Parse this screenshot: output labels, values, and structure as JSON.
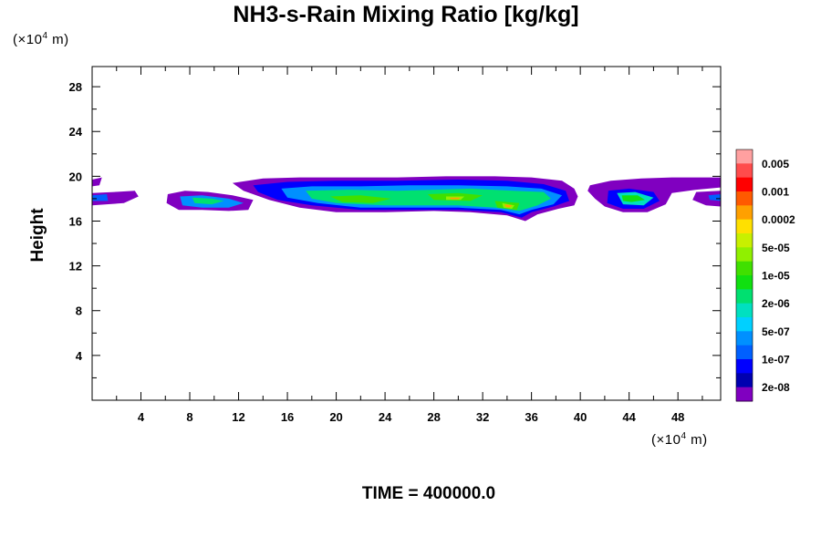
{
  "chart_data": {
    "type": "contour",
    "title": "NH3-s-Rain Mixing Ratio [kg/kg]",
    "ylabel": "Height",
    "xunit": {
      "prefix": "(×10",
      "exp": "4",
      "suffix": " m)"
    },
    "yunit": {
      "prefix": "(×10",
      "exp": "4",
      "suffix": " m)"
    },
    "footer": "TIME = 400000.0",
    "xlim": [
      0,
      51.5
    ],
    "ylim": [
      0,
      29.8
    ],
    "xticks": [
      4,
      8,
      12,
      16,
      20,
      24,
      28,
      32,
      36,
      40,
      44,
      48
    ],
    "yticks": [
      4,
      8,
      12,
      16,
      20,
      24,
      28
    ],
    "colorbar": {
      "colors": [
        "#ffa0a0",
        "#ff4c4c",
        "#ff0000",
        "#ff5a00",
        "#ffa000",
        "#ffe000",
        "#c8f000",
        "#90f000",
        "#40e000",
        "#10e010",
        "#00e070",
        "#00e0c0",
        "#00d0ff",
        "#0090ff",
        "#0060ff",
        "#0000ff",
        "#0000b0",
        "#8000c0"
      ],
      "labels": [
        "0.005",
        "0.001",
        "0.0002",
        "5e-05",
        "1e-05",
        "2e-06",
        "5e-07",
        "1e-07",
        "2e-08"
      ]
    },
    "regions": [
      {
        "level": 0,
        "points": [
          [
            0,
            19.7
          ],
          [
            0.8,
            19.9
          ],
          [
            0.6,
            19.2
          ],
          [
            0,
            19.1
          ]
        ]
      },
      {
        "level": 0,
        "points": [
          [
            0,
            18.5
          ],
          [
            1.8,
            18.6
          ],
          [
            3.5,
            18.7
          ],
          [
            3.8,
            18.2
          ],
          [
            2.6,
            17.6
          ],
          [
            0,
            17.4
          ]
        ]
      },
      {
        "level": 3,
        "points": [
          [
            0,
            18.3
          ],
          [
            1.2,
            18.4
          ],
          [
            1.3,
            17.8
          ],
          [
            0,
            17.8
          ]
        ]
      },
      {
        "level": 0,
        "points": [
          [
            6.2,
            18.4
          ],
          [
            7.6,
            18.7
          ],
          [
            9.5,
            18.6
          ],
          [
            11.5,
            18.3
          ],
          [
            13.2,
            17.9
          ],
          [
            12.8,
            17.0
          ],
          [
            11.2,
            16.9
          ],
          [
            9,
            17.0
          ],
          [
            7.1,
            17.0
          ],
          [
            6.1,
            17.6
          ]
        ]
      },
      {
        "level": 4,
        "points": [
          [
            7.2,
            18.2
          ],
          [
            9,
            18.3
          ],
          [
            11.2,
            18.0
          ],
          [
            12.4,
            17.6
          ],
          [
            11.2,
            17.2
          ],
          [
            9,
            17.2
          ],
          [
            7.4,
            17.4
          ]
        ]
      },
      {
        "level": 7,
        "points": [
          [
            8.2,
            18.1
          ],
          [
            9.8,
            18.0
          ],
          [
            10.8,
            17.8
          ],
          [
            9.8,
            17.5
          ],
          [
            8.4,
            17.6
          ]
        ]
      },
      {
        "level": 0,
        "points": [
          [
            11.5,
            19.4
          ],
          [
            14,
            19.8
          ],
          [
            17,
            19.9
          ],
          [
            21,
            19.9
          ],
          [
            25,
            19.9
          ],
          [
            29,
            20.0
          ],
          [
            33,
            20.0
          ],
          [
            36,
            19.9
          ],
          [
            38.5,
            19.6
          ],
          [
            39.5,
            18.9
          ],
          [
            39.8,
            18.2
          ],
          [
            39.5,
            17.4
          ],
          [
            38.2,
            17.1
          ],
          [
            36.5,
            16.6
          ],
          [
            35.5,
            16.0
          ],
          [
            34,
            16.5
          ],
          [
            31,
            16.8
          ],
          [
            28,
            16.9
          ],
          [
            24,
            16.8
          ],
          [
            20,
            16.8
          ],
          [
            17,
            17.2
          ],
          [
            14.5,
            17.9
          ],
          [
            12.4,
            18.7
          ]
        ]
      },
      {
        "level": 2,
        "points": [
          [
            13.2,
            19.2
          ],
          [
            16,
            19.5
          ],
          [
            20,
            19.6
          ],
          [
            25,
            19.6
          ],
          [
            30,
            19.7
          ],
          [
            34,
            19.6
          ],
          [
            37,
            19.3
          ],
          [
            38.8,
            18.7
          ],
          [
            39.1,
            17.8
          ],
          [
            37.8,
            17.3
          ],
          [
            36,
            16.8
          ],
          [
            35.2,
            16.3
          ],
          [
            33.5,
            16.8
          ],
          [
            30,
            17.0
          ],
          [
            26,
            17.0
          ],
          [
            22,
            17.0
          ],
          [
            18,
            17.4
          ],
          [
            15.2,
            17.9
          ],
          [
            13.6,
            18.6
          ]
        ]
      },
      {
        "level": 4,
        "points": [
          [
            15.5,
            18.9
          ],
          [
            18,
            19.1
          ],
          [
            22,
            19.1
          ],
          [
            26,
            19.2
          ],
          [
            30,
            19.2
          ],
          [
            34,
            19.1
          ],
          [
            36.8,
            18.9
          ],
          [
            38.5,
            18.3
          ],
          [
            37.8,
            17.5
          ],
          [
            36,
            17.0
          ],
          [
            35,
            16.6
          ],
          [
            33.5,
            17.0
          ],
          [
            30,
            17.2
          ],
          [
            26,
            17.2
          ],
          [
            22,
            17.2
          ],
          [
            18.5,
            17.6
          ],
          [
            16,
            18.1
          ]
        ]
      },
      {
        "level": 7,
        "points": [
          [
            17.5,
            18.7
          ],
          [
            21,
            18.8
          ],
          [
            25,
            18.7
          ],
          [
            28,
            18.8
          ],
          [
            31,
            18.9
          ],
          [
            34.5,
            18.7
          ],
          [
            37,
            18.6
          ],
          [
            37.6,
            18.0
          ],
          [
            36.5,
            17.4
          ],
          [
            35,
            16.9
          ],
          [
            33,
            17.2
          ],
          [
            30,
            17.4
          ],
          [
            27,
            17.4
          ],
          [
            24,
            17.4
          ],
          [
            20,
            17.6
          ],
          [
            18,
            18.0
          ]
        ]
      },
      {
        "level": 9,
        "points": [
          [
            19.5,
            18.2
          ],
          [
            22,
            18.3
          ],
          [
            24.5,
            18.0
          ],
          [
            23,
            17.6
          ],
          [
            20.5,
            17.7
          ]
        ]
      },
      {
        "level": 9,
        "points": [
          [
            27.5,
            18.4
          ],
          [
            30,
            18.5
          ],
          [
            32,
            18.3
          ],
          [
            31,
            17.8
          ],
          [
            28,
            17.9
          ]
        ]
      },
      {
        "level": 9,
        "points": [
          [
            33,
            17.8
          ],
          [
            35,
            17.6
          ],
          [
            34.8,
            17.0
          ],
          [
            33.2,
            17.2
          ]
        ]
      },
      {
        "level": 10,
        "points": [
          [
            29,
            18.2
          ],
          [
            30.5,
            18.2
          ],
          [
            30.2,
            17.9
          ],
          [
            29,
            17.9
          ]
        ]
      },
      {
        "level": 13,
        "points": [
          [
            29.3,
            18.1
          ],
          [
            30.2,
            18.1
          ],
          [
            30,
            17.95
          ],
          [
            29.4,
            17.95
          ]
        ]
      },
      {
        "level": 10,
        "points": [
          [
            33.6,
            17.6
          ],
          [
            34.6,
            17.4
          ],
          [
            34.4,
            17.1
          ],
          [
            33.7,
            17.2
          ]
        ]
      },
      {
        "level": 13,
        "points": [
          [
            33.8,
            17.5
          ],
          [
            34.4,
            17.4
          ],
          [
            34.2,
            17.2
          ],
          [
            33.9,
            17.25
          ]
        ]
      },
      {
        "level": 0,
        "points": [
          [
            40.8,
            19.2
          ],
          [
            42.5,
            19.6
          ],
          [
            45,
            19.8
          ],
          [
            47.5,
            19.9
          ],
          [
            50,
            19.9
          ],
          [
            51.5,
            19.9
          ],
          [
            51.5,
            19.0
          ],
          [
            49.5,
            18.8
          ],
          [
            47.5,
            18.5
          ],
          [
            47,
            17.5
          ],
          [
            45.5,
            16.8
          ],
          [
            43.5,
            16.8
          ],
          [
            42,
            17.3
          ],
          [
            41.2,
            18.0
          ],
          [
            40.6,
            18.7
          ]
        ]
      },
      {
        "level": 2,
        "points": [
          [
            42.3,
            18.7
          ],
          [
            44,
            18.9
          ],
          [
            46,
            18.6
          ],
          [
            46.5,
            17.8
          ],
          [
            45.2,
            17.1
          ],
          [
            43.5,
            17.1
          ],
          [
            42.2,
            17.6
          ]
        ]
      },
      {
        "level": 6,
        "points": [
          [
            43,
            18.5
          ],
          [
            44.5,
            18.6
          ],
          [
            46,
            18.1
          ],
          [
            45.2,
            17.4
          ],
          [
            43.5,
            17.5
          ]
        ]
      },
      {
        "level": 8,
        "points": [
          [
            43.4,
            18.3
          ],
          [
            44.7,
            18.3
          ],
          [
            45.3,
            17.9
          ],
          [
            44.2,
            17.7
          ],
          [
            43.5,
            17.8
          ]
        ]
      },
      {
        "level": 0,
        "points": [
          [
            49.5,
            18.6
          ],
          [
            51.5,
            18.7
          ],
          [
            51.5,
            17.3
          ],
          [
            50.3,
            17.4
          ],
          [
            49.2,
            17.9
          ]
        ]
      },
      {
        "level": 3,
        "points": [
          [
            50.5,
            18.3
          ],
          [
            51.5,
            18.4
          ],
          [
            51.5,
            17.8
          ],
          [
            50.6,
            17.9
          ]
        ]
      }
    ]
  }
}
